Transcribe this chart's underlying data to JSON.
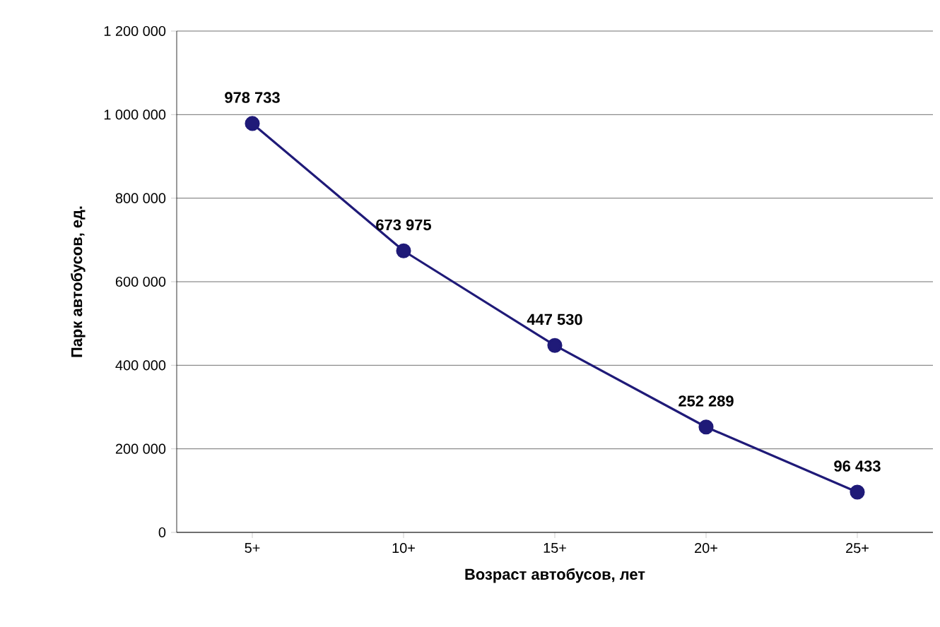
{
  "chart_data": {
    "type": "line",
    "xlabel": "Возраст автобусов, лет",
    "ylabel": "Парк автобусов, ед.",
    "categories": [
      "5+",
      "10+",
      "15+",
      "20+",
      "25+"
    ],
    "values": [
      978733,
      673975,
      447530,
      252289,
      96433
    ],
    "value_labels": [
      "978 733",
      "673 975",
      "447 530",
      "252 289",
      "96 433"
    ],
    "color": "#1f1a78",
    "marker": "circle",
    "line_style": "solid",
    "grid": "y",
    "ylim": [
      0,
      1200000
    ],
    "yticks": [
      0,
      {
        "value": 200000,
        "label": "200 000"
      },
      {
        "value": 400000,
        "label": "400 000"
      },
      {
        "value": 600000,
        "label": "600 000"
      },
      {
        "value": 800000,
        "label": "800 000"
      },
      {
        "value": 1000000,
        "label": "1 000 000"
      },
      {
        "value": 1200000,
        "label": "1 200 000"
      }
    ]
  }
}
